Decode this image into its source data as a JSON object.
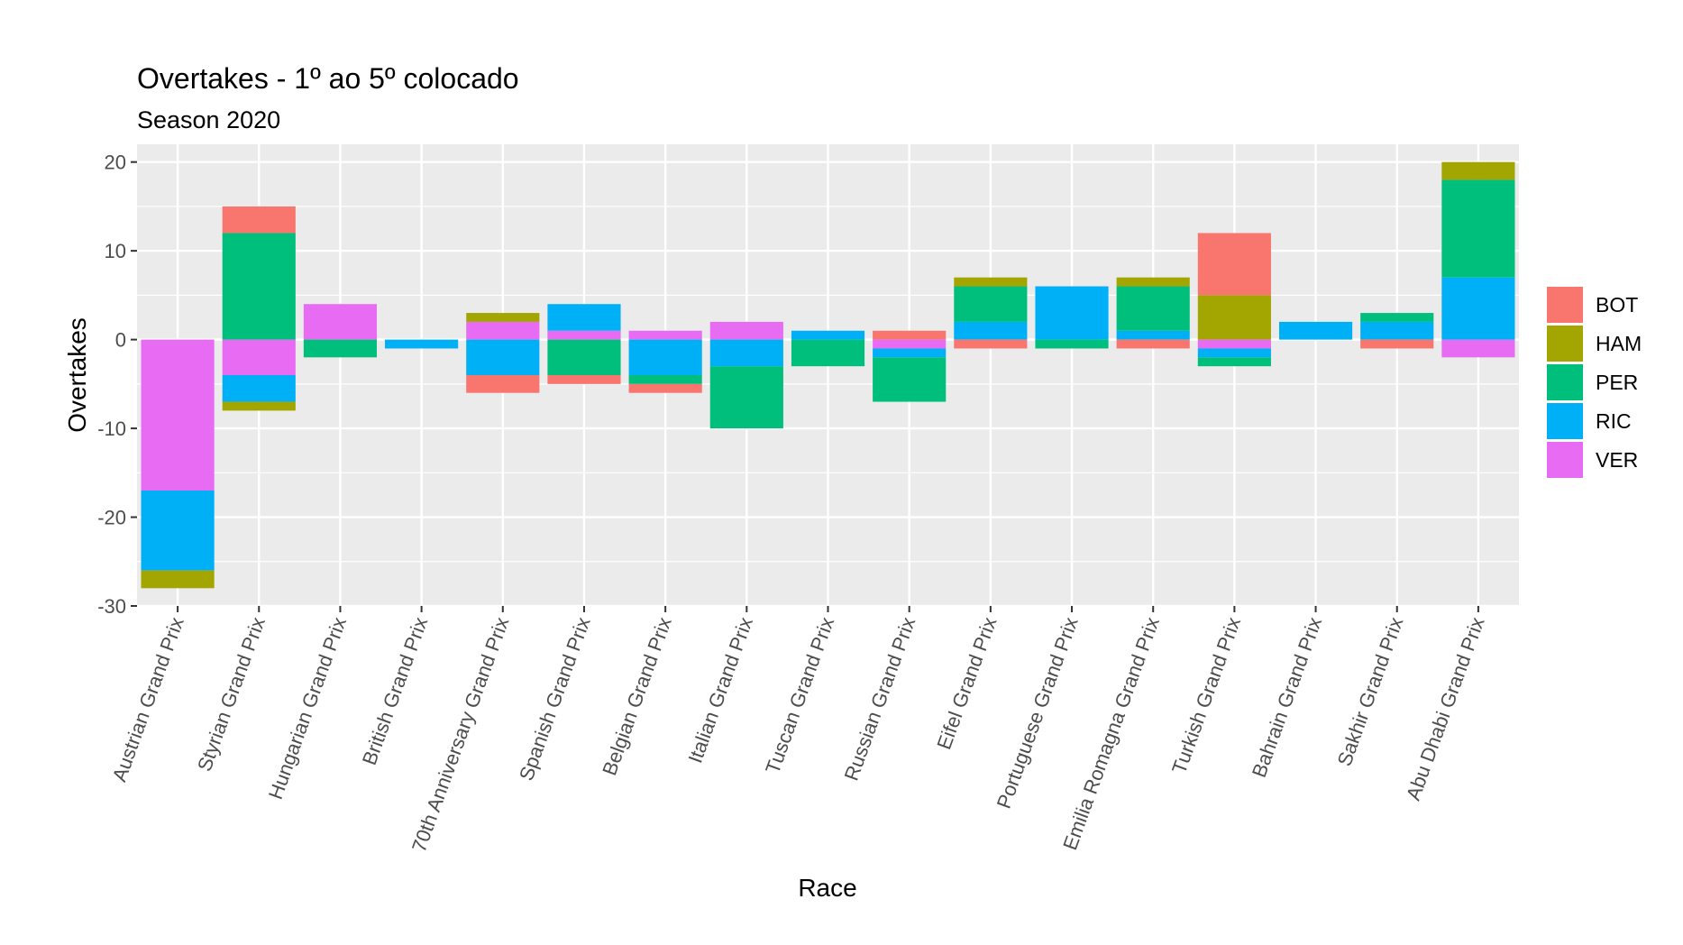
{
  "chart_data": {
    "type": "bar",
    "stacked": true,
    "title": "Overtakes - 1º ao 5º colocado",
    "subtitle": "Season 2020",
    "xlabel": "Race",
    "ylabel": "Overtakes",
    "ylim": [
      -30,
      22
    ],
    "yticks": [
      20,
      10,
      0,
      -10,
      -20,
      -30
    ],
    "grid": true,
    "legend_position": "right",
    "categories": [
      "Austrian Grand Prix",
      "Styrian Grand Prix",
      "Hungarian Grand Prix",
      "British Grand Prix",
      "70th Anniversary Grand Prix",
      "Spanish Grand Prix",
      "Belgian Grand Prix",
      "Italian Grand Prix",
      "Tuscan Grand Prix",
      "Russian Grand Prix",
      "Eifel Grand Prix",
      "Portuguese Grand Prix",
      "Emilia Romagna Grand Prix",
      "Turkish Grand Prix",
      "Bahrain Grand Prix",
      "Sakhir Grand Prix",
      "Abu Dhabi Grand Prix"
    ],
    "series": [
      {
        "name": "BOT",
        "color": "#F8766D",
        "values": [
          0,
          3,
          0,
          0,
          -2,
          -1,
          -1,
          0,
          0,
          1,
          -1,
          0,
          -1,
          7,
          0,
          -1,
          0
        ]
      },
      {
        "name": "HAM",
        "color": "#A3A500",
        "values": [
          -2,
          -1,
          0,
          0,
          1,
          0,
          0,
          0,
          0,
          0,
          1,
          0,
          1,
          5,
          0,
          0,
          2
        ]
      },
      {
        "name": "PER",
        "color": "#00BF7D",
        "values": [
          0,
          12,
          -2,
          0,
          0,
          -4,
          -1,
          -7,
          -3,
          -5,
          4,
          -1,
          5,
          -1,
          0,
          1,
          11
        ]
      },
      {
        "name": "RIC",
        "color": "#00B0F6",
        "values": [
          -9,
          -3,
          0,
          -1,
          -4,
          3,
          -4,
          -3,
          1,
          -1,
          2,
          6,
          1,
          -1,
          2,
          2,
          7
        ]
      },
      {
        "name": "VER",
        "color": "#E76BF3",
        "values": [
          -17,
          -4,
          4,
          0,
          2,
          1,
          1,
          2,
          0,
          -1,
          0,
          0,
          0,
          -1,
          0,
          0,
          -2
        ]
      }
    ]
  }
}
